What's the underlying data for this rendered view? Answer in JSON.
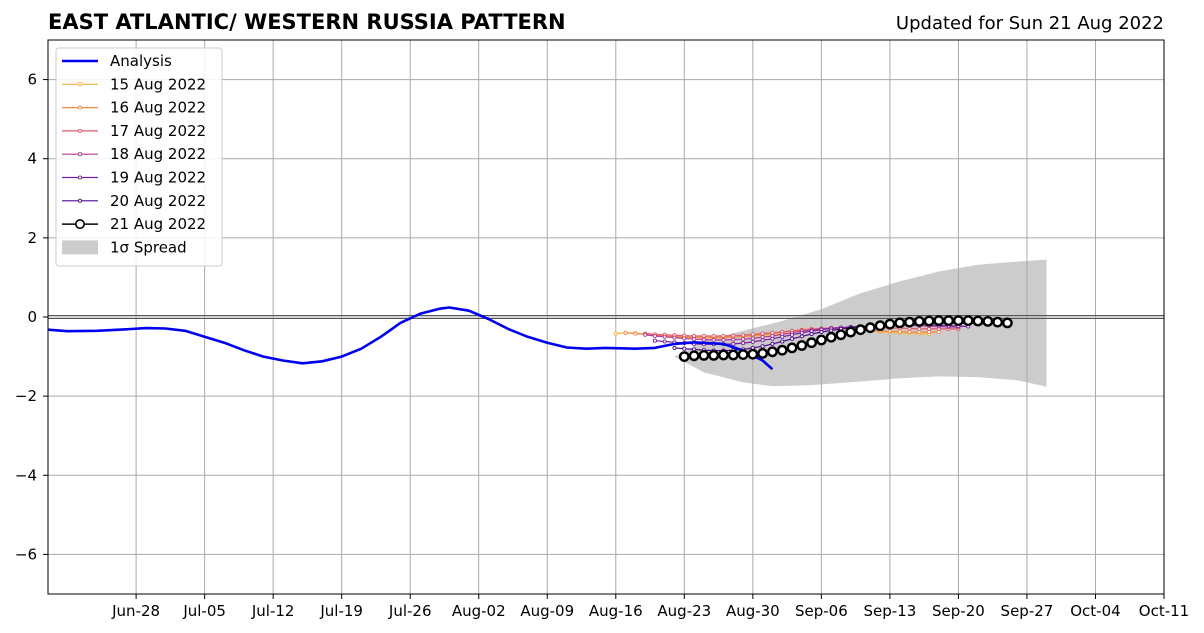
{
  "chart_data": {
    "type": "line",
    "title": "EAST ATLANTIC/ WESTERN RUSSIA PATTERN",
    "subtitle": "Updated for Sun 21 Aug 2022",
    "xlabel": "",
    "ylabel": "",
    "xlim": [
      "2022-06-19",
      "2022-10-11"
    ],
    "ylim": [
      -7,
      7
    ],
    "xticks": [
      "Jun-28",
      "Jul-05",
      "Jul-12",
      "Jul-19",
      "Jul-26",
      "Aug-02",
      "Aug-09",
      "Aug-16",
      "Aug-23",
      "Aug-30",
      "Sep-06",
      "Sep-13",
      "Sep-20",
      "Sep-27",
      "Oct-04",
      "Oct-11"
    ],
    "yticks": [
      "6",
      "4",
      "2",
      "0",
      "−2",
      "−4",
      "−6"
    ],
    "grid": true,
    "legend_position": "top-left",
    "colors": {
      "analysis": "#0000ee",
      "spread": "#cccccc",
      "zero_line": "#555555",
      "grid": "#aaaaaa"
    },
    "analysis": {
      "name": "Analysis",
      "points": [
        [
          "2022-06-19",
          -0.32
        ],
        [
          "2022-06-21",
          -0.36
        ],
        [
          "2022-06-24",
          -0.35
        ],
        [
          "2022-06-27",
          -0.31
        ],
        [
          "2022-06-29",
          -0.28
        ],
        [
          "2022-07-01",
          -0.29
        ],
        [
          "2022-07-03",
          -0.35
        ],
        [
          "2022-07-05",
          -0.5
        ],
        [
          "2022-07-07",
          -0.65
        ],
        [
          "2022-07-09",
          -0.84
        ],
        [
          "2022-07-11",
          -1.0
        ],
        [
          "2022-07-13",
          -1.1
        ],
        [
          "2022-07-15",
          -1.17
        ],
        [
          "2022-07-17",
          -1.12
        ],
        [
          "2022-07-19",
          -1.0
        ],
        [
          "2022-07-21",
          -0.8
        ],
        [
          "2022-07-23",
          -0.5
        ],
        [
          "2022-07-25",
          -0.15
        ],
        [
          "2022-07-27",
          0.08
        ],
        [
          "2022-07-29",
          0.21
        ],
        [
          "2022-07-30",
          0.24
        ],
        [
          "2022-08-01",
          0.16
        ],
        [
          "2022-08-03",
          -0.05
        ],
        [
          "2022-08-05",
          -0.3
        ],
        [
          "2022-08-07",
          -0.5
        ],
        [
          "2022-08-09",
          -0.65
        ],
        [
          "2022-08-11",
          -0.77
        ],
        [
          "2022-08-13",
          -0.8
        ],
        [
          "2022-08-15",
          -0.78
        ],
        [
          "2022-08-18",
          -0.8
        ],
        [
          "2022-08-20",
          -0.78
        ],
        [
          "2022-08-22",
          -0.68
        ],
        [
          "2022-08-24",
          -0.64
        ],
        [
          "2022-08-27",
          -0.68
        ],
        [
          "2022-08-29",
          -0.85
        ],
        [
          "2022-08-31",
          -1.1
        ],
        [
          "2022-09-01",
          -1.32
        ]
      ]
    },
    "spread": {
      "name": "1σ Spread",
      "upper": [
        [
          "2022-08-22",
          -1.0
        ],
        [
          "2022-08-25",
          -0.6
        ],
        [
          "2022-08-29",
          -0.35
        ],
        [
          "2022-09-02",
          -0.1
        ],
        [
          "2022-09-06",
          0.2
        ],
        [
          "2022-09-10",
          0.6
        ],
        [
          "2022-09-14",
          0.9
        ],
        [
          "2022-09-18",
          1.15
        ],
        [
          "2022-09-22",
          1.32
        ],
        [
          "2022-09-26",
          1.4
        ],
        [
          "2022-09-29",
          1.45
        ]
      ],
      "lower": [
        [
          "2022-08-22",
          -1.0
        ],
        [
          "2022-08-25",
          -1.4
        ],
        [
          "2022-08-29",
          -1.65
        ],
        [
          "2022-09-01",
          -1.75
        ],
        [
          "2022-09-05",
          -1.72
        ],
        [
          "2022-09-09",
          -1.65
        ],
        [
          "2022-09-14",
          -1.55
        ],
        [
          "2022-09-18",
          -1.5
        ],
        [
          "2022-09-22",
          -1.52
        ],
        [
          "2022-09-26",
          -1.6
        ],
        [
          "2022-09-29",
          -1.76
        ]
      ]
    },
    "forecasts": [
      {
        "name": "15 Aug 2022",
        "color": "#f5b041",
        "marker": "small",
        "start": "2022-08-16",
        "values": [
          -0.42,
          -0.4,
          -0.41,
          -0.43,
          -0.45,
          -0.46,
          -0.48,
          -0.49,
          -0.5,
          -0.5,
          -0.5,
          -0.5,
          -0.5,
          -0.49,
          -0.48,
          -0.46,
          -0.44,
          -0.42,
          -0.39,
          -0.36,
          -0.33,
          -0.31,
          -0.3,
          -0.3,
          -0.31,
          -0.33,
          -0.35,
          -0.37,
          -0.39,
          -0.4,
          -0.41,
          -0.42,
          -0.43
        ]
      },
      {
        "name": "16 Aug 2022",
        "color": "#f08a4b",
        "marker": "small",
        "start": "2022-08-17",
        "values": [
          -0.4,
          -0.42,
          -0.44,
          -0.46,
          -0.48,
          -0.5,
          -0.51,
          -0.52,
          -0.53,
          -0.53,
          -0.52,
          -0.51,
          -0.49,
          -0.47,
          -0.44,
          -0.41,
          -0.38,
          -0.35,
          -0.32,
          -0.3,
          -0.29,
          -0.29,
          -0.3,
          -0.31,
          -0.33,
          -0.34,
          -0.35,
          -0.36,
          -0.37,
          -0.38,
          -0.38,
          -0.38,
          -0.38
        ]
      },
      {
        "name": "17 Aug 2022",
        "color": "#e05a6b",
        "marker": "small",
        "start": "2022-08-19",
        "values": [
          -0.42,
          -0.44,
          -0.45,
          -0.46,
          -0.47,
          -0.48,
          -0.48,
          -0.48,
          -0.48,
          -0.47,
          -0.46,
          -0.44,
          -0.42,
          -0.4,
          -0.38,
          -0.35,
          -0.33,
          -0.31,
          -0.29,
          -0.28,
          -0.27,
          -0.27,
          -0.27,
          -0.27,
          -0.27,
          -0.28,
          -0.28,
          -0.29,
          -0.3,
          -0.3,
          -0.3,
          -0.3,
          -0.3
        ]
      },
      {
        "name": "18 Aug 2022",
        "color": "#b43c90",
        "marker": "small",
        "start": "2022-08-19",
        "values": [
          -0.45,
          -0.48,
          -0.5,
          -0.52,
          -0.54,
          -0.56,
          -0.57,
          -0.58,
          -0.58,
          -0.57,
          -0.56,
          -0.54,
          -0.51,
          -0.48,
          -0.44,
          -0.4,
          -0.36,
          -0.33,
          -0.3,
          -0.28,
          -0.27,
          -0.26,
          -0.25,
          -0.24,
          -0.23,
          -0.22,
          -0.22,
          -0.22,
          -0.22,
          -0.23,
          -0.24,
          -0.25,
          -0.26
        ]
      },
      {
        "name": "19 Aug 2022",
        "color": "#7a1fa2",
        "marker": "small",
        "start": "2022-08-20",
        "values": [
          -0.6,
          -0.62,
          -0.64,
          -0.66,
          -0.68,
          -0.69,
          -0.69,
          -0.69,
          -0.68,
          -0.66,
          -0.63,
          -0.59,
          -0.55,
          -0.5,
          -0.45,
          -0.4,
          -0.36,
          -0.32,
          -0.29,
          -0.27,
          -0.25,
          -0.24,
          -0.23,
          -0.22,
          -0.21,
          -0.2,
          -0.2,
          -0.2,
          -0.2,
          -0.21,
          -0.22,
          -0.23,
          -0.24
        ]
      },
      {
        "name": "20 Aug 2022",
        "color": "#4b0f8a",
        "marker": "small",
        "start": "2022-08-22",
        "values": [
          -0.78,
          -0.8,
          -0.82,
          -0.84,
          -0.85,
          -0.85,
          -0.84,
          -0.82,
          -0.78,
          -0.74,
          -0.68,
          -0.62,
          -0.55,
          -0.49,
          -0.43,
          -0.38,
          -0.34,
          -0.3,
          -0.27,
          -0.25,
          -0.23,
          -0.21,
          -0.2,
          -0.19,
          -0.18,
          -0.17,
          -0.16,
          -0.16,
          -0.16,
          -0.16,
          -0.16,
          -0.17,
          -0.18
        ]
      },
      {
        "name": "21 Aug 2022",
        "color": "#000000",
        "marker": "circle",
        "start": "2022-08-23",
        "values": [
          -1.0,
          -0.98,
          -0.97,
          -0.97,
          -0.96,
          -0.96,
          -0.95,
          -0.94,
          -0.92,
          -0.88,
          -0.84,
          -0.78,
          -0.72,
          -0.65,
          -0.58,
          -0.51,
          -0.45,
          -0.38,
          -0.32,
          -0.27,
          -0.22,
          -0.18,
          -0.15,
          -0.13,
          -0.11,
          -0.1,
          -0.09,
          -0.09,
          -0.09,
          -0.09,
          -0.1,
          -0.11,
          -0.13,
          -0.15
        ]
      }
    ]
  }
}
